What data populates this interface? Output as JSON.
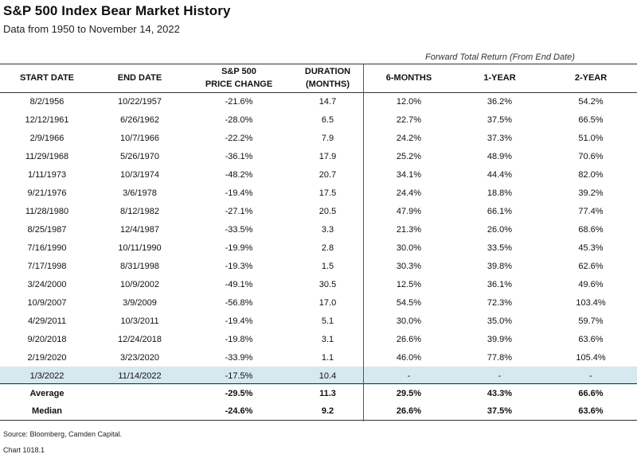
{
  "header": {
    "title": "S&P 500 Index Bear Market History",
    "subtitle": "Data from 1950 to November 14, 2022",
    "forward_label": "Forward Total Return (From End Date)"
  },
  "columns": [
    [
      "START DATE"
    ],
    [
      "END DATE"
    ],
    [
      "S&P 500",
      "PRICE CHANGE"
    ],
    [
      "DURATION",
      "(MONTHS)"
    ],
    [
      "6-MONTHS"
    ],
    [
      "1-YEAR"
    ],
    [
      "2-YEAR"
    ]
  ],
  "chart_data": {
    "type": "table",
    "title": "S&P 500 Index Bear Market History",
    "subtitle": "Data from 1950 to November 14, 2022",
    "rows": [
      [
        "8/2/1956",
        "10/22/1957",
        "-21.6%",
        "14.7",
        "12.0%",
        "36.2%",
        "54.2%"
      ],
      [
        "12/12/1961",
        "6/26/1962",
        "-28.0%",
        "6.5",
        "22.7%",
        "37.5%",
        "66.5%"
      ],
      [
        "2/9/1966",
        "10/7/1966",
        "-22.2%",
        "7.9",
        "24.2%",
        "37.3%",
        "51.0%"
      ],
      [
        "11/29/1968",
        "5/26/1970",
        "-36.1%",
        "17.9",
        "25.2%",
        "48.9%",
        "70.6%"
      ],
      [
        "1/11/1973",
        "10/3/1974",
        "-48.2%",
        "20.7",
        "34.1%",
        "44.4%",
        "82.0%"
      ],
      [
        "9/21/1976",
        "3/6/1978",
        "-19.4%",
        "17.5",
        "24.4%",
        "18.8%",
        "39.2%"
      ],
      [
        "11/28/1980",
        "8/12/1982",
        "-27.1%",
        "20.5",
        "47.9%",
        "66.1%",
        "77.4%"
      ],
      [
        "8/25/1987",
        "12/4/1987",
        "-33.5%",
        "3.3",
        "21.3%",
        "26.0%",
        "68.6%"
      ],
      [
        "7/16/1990",
        "10/11/1990",
        "-19.9%",
        "2.8",
        "30.0%",
        "33.5%",
        "45.3%"
      ],
      [
        "7/17/1998",
        "8/31/1998",
        "-19.3%",
        "1.5",
        "30.3%",
        "39.8%",
        "62.6%"
      ],
      [
        "3/24/2000",
        "10/9/2002",
        "-49.1%",
        "30.5",
        "12.5%",
        "36.1%",
        "49.6%"
      ],
      [
        "10/9/2007",
        "3/9/2009",
        "-56.8%",
        "17.0",
        "54.5%",
        "72.3%",
        "103.4%"
      ],
      [
        "4/29/2011",
        "10/3/2011",
        "-19.4%",
        "5.1",
        "30.0%",
        "35.0%",
        "59.7%"
      ],
      [
        "9/20/2018",
        "12/24/2018",
        "-19.8%",
        "3.1",
        "26.6%",
        "39.9%",
        "63.6%"
      ],
      [
        "2/19/2020",
        "3/23/2020",
        "-33.9%",
        "1.1",
        "46.0%",
        "77.8%",
        "105.4%"
      ]
    ],
    "current_row": [
      "1/3/2022",
      "11/14/2022",
      "-17.5%",
      "10.4",
      "-",
      "-",
      "-"
    ],
    "summary": [
      [
        "Average",
        "",
        "-29.5%",
        "11.3",
        "29.5%",
        "43.3%",
        "66.6%"
      ],
      [
        "Median",
        "",
        "-24.6%",
        "9.2",
        "26.6%",
        "37.5%",
        "63.6%"
      ]
    ]
  },
  "footer": {
    "source": "Source: Bloomberg, Camden Capital.",
    "chart_number": "Chart 1018.1"
  }
}
